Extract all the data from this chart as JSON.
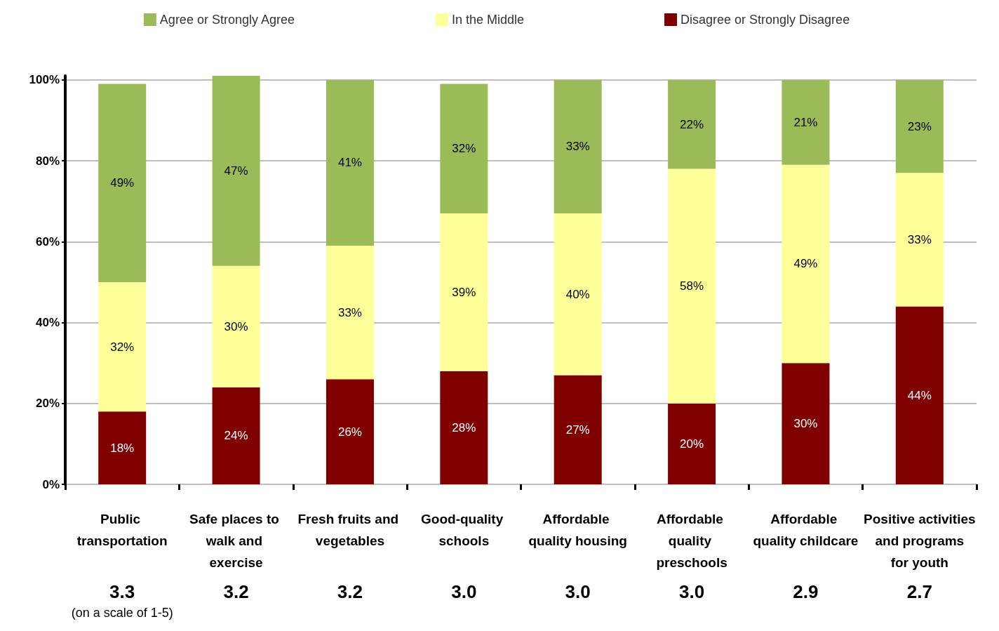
{
  "chart_data": {
    "type": "bar",
    "stacked": true,
    "grid": "y",
    "legend": "top",
    "categories": [
      "Public transportation",
      "Safe places to walk and exercise",
      "Fresh fruits and vegetables",
      "Good-quality schools",
      "Affordable quality housing",
      "Affordable quality preschools",
      "Affordable quality childcare",
      "Positive activities and programs for youth"
    ],
    "series": [
      {
        "name": "Disagree or Strongly Disagree",
        "color": "#800000",
        "values": [
          18,
          24,
          26,
          28,
          27,
          20,
          30,
          44
        ],
        "value_labels": [
          "18%",
          "24%",
          "26%",
          "28%",
          "27%",
          "20%",
          "30%",
          "44%"
        ]
      },
      {
        "name": "In the Middle",
        "color": "#ffff99",
        "values": [
          32,
          30,
          33,
          39,
          40,
          58,
          49,
          33
        ],
        "value_labels": [
          "32%",
          "30%",
          "33%",
          "39%",
          "40%",
          "58%",
          "49%",
          "33%"
        ]
      },
      {
        "name": "Agree or Strongly Agree",
        "color": "#9bbb59",
        "values": [
          49,
          47,
          41,
          32,
          33,
          22,
          21,
          23
        ],
        "value_labels": [
          "49%",
          "47%",
          "41%",
          "32%",
          "33%",
          "22%",
          "21%",
          "23%"
        ]
      }
    ],
    "ylim": [
      0,
      101
    ],
    "yticks": [
      {
        "value": 0,
        "label": "0%"
      },
      {
        "value": 20,
        "label": "20%"
      },
      {
        "value": 40,
        "label": "40%"
      },
      {
        "value": 60,
        "label": "60%"
      },
      {
        "value": 80,
        "label": "80%"
      },
      {
        "value": 100,
        "label": "100%"
      }
    ],
    "annotations": [
      "3.3",
      "3.2",
      "3.2",
      "3.0",
      "3.0",
      "3.0",
      "2.9",
      "2.7",
      "(on a scale of 1-5)"
    ]
  }
}
